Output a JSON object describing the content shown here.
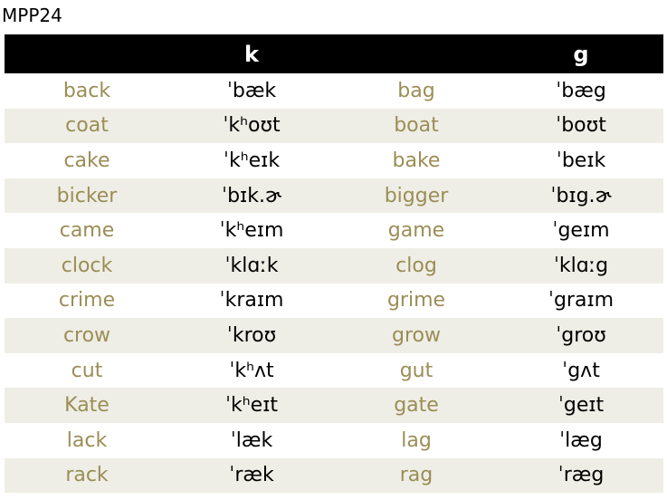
{
  "title": "MPP24",
  "headers": [
    "",
    "k",
    "",
    "g"
  ],
  "rows": [
    {
      "k_word": "back",
      "k_ipa": "ˈbæk",
      "g_word": "bag",
      "g_ipa": "ˈbæg"
    },
    {
      "k_word": "coat",
      "k_ipa": "ˈkʰoʊt",
      "g_word": "boat",
      "g_ipa": "ˈboʊt"
    },
    {
      "k_word": "cake",
      "k_ipa": "ˈkʰeɪk",
      "g_word": "bake",
      "g_ipa": "ˈbeɪk"
    },
    {
      "k_word": "bicker",
      "k_ipa": "ˈbɪk.ɚ",
      "g_word": "bigger",
      "g_ipa": "ˈbɪg.ɚ"
    },
    {
      "k_word": "came",
      "k_ipa": "ˈkʰeɪm",
      "g_word": "game",
      "g_ipa": "ˈgeɪm"
    },
    {
      "k_word": "clock",
      "k_ipa": "ˈklɑːk",
      "g_word": "clog",
      "g_ipa": "ˈklɑːg"
    },
    {
      "k_word": "crime",
      "k_ipa": "ˈkraɪm",
      "g_word": "grime",
      "g_ipa": "ˈgraɪm"
    },
    {
      "k_word": "crow",
      "k_ipa": "ˈkroʊ",
      "g_word": "grow",
      "g_ipa": "ˈgroʊ"
    },
    {
      "k_word": "cut",
      "k_ipa": "ˈkʰʌt",
      "g_word": "gut",
      "g_ipa": "ˈgʌt"
    },
    {
      "k_word": "Kate",
      "k_ipa": "ˈkʰeɪt",
      "g_word": "gate",
      "g_ipa": "ˈgeɪt"
    },
    {
      "k_word": "lack",
      "k_ipa": "ˈlæk",
      "g_word": "lag",
      "g_ipa": "ˈlæg"
    },
    {
      "k_word": "rack",
      "k_ipa": "ˈræk",
      "g_word": "rag",
      "g_ipa": "ˈræg"
    }
  ],
  "colors": {
    "header_bg": "#000000",
    "header_text": "#ffffff",
    "word_text": "#9b8d55",
    "ipa_text": "#000000",
    "alt_row_bg": "#eeeee6"
  }
}
